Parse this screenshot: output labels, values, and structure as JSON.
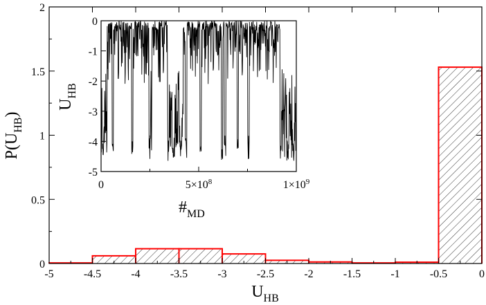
{
  "chart_data": [
    {
      "type": "bar",
      "subtype": "histogram",
      "xlabel": "U",
      "xlabel_sub": "HB",
      "ylabel_pre": "P(U",
      "ylabel_sub": "HB",
      "ylabel_post": ")",
      "xlim": [
        -5,
        0
      ],
      "ylim": [
        0,
        2
      ],
      "xticks": [
        -5,
        -4.5,
        -4,
        -3.5,
        -3,
        -2.5,
        -2,
        -1.5,
        -1,
        -0.5,
        0
      ],
      "xtick_labels": [
        "-5",
        "-4.5",
        "-4",
        "-3.5",
        "-3",
        "-2.5",
        "-2",
        "-1.5",
        "-1",
        "-0.5",
        "0"
      ],
      "yticks": [
        0,
        0.5,
        1,
        1.5,
        2
      ],
      "ytick_labels": [
        "0",
        "0.5",
        "1",
        "1.5",
        "2"
      ],
      "bins": [
        {
          "x0": -5.0,
          "x1": -4.5,
          "value": 0.005
        },
        {
          "x0": -4.5,
          "x1": -4.0,
          "value": 0.06
        },
        {
          "x0": -4.0,
          "x1": -3.5,
          "value": 0.115
        },
        {
          "x0": -3.5,
          "x1": -3.0,
          "value": 0.115
        },
        {
          "x0": -3.0,
          "x1": -2.5,
          "value": 0.075
        },
        {
          "x0": -2.5,
          "x1": -2.0,
          "value": 0.025
        },
        {
          "x0": -2.0,
          "x1": -1.5,
          "value": 0.012
        },
        {
          "x0": -1.5,
          "x1": -1.0,
          "value": 0.005
        },
        {
          "x0": -1.0,
          "x1": -0.5,
          "value": 0.01
        },
        {
          "x0": -0.5,
          "x1": 0.0,
          "value": 1.53
        }
      ],
      "bar_color": "#ff0000",
      "hatch_color": "#000000",
      "grid": false
    },
    {
      "type": "line",
      "role": "inset",
      "xlabel": "#",
      "xlabel_sub": "MD",
      "ylabel": "U",
      "ylabel_sub": "HB",
      "xlim": [
        0,
        1000000000
      ],
      "ylim": [
        -5,
        0
      ],
      "xticks": [
        0,
        500000000,
        1000000000
      ],
      "xtick_labels": [
        {
          "base": "0",
          "exp": ""
        },
        {
          "base": "5×10",
          "exp": "8"
        },
        {
          "base": "1×10",
          "exp": "9"
        }
      ],
      "yticks": [
        -5,
        -4,
        -3,
        -2,
        -1,
        0
      ],
      "ytick_labels": [
        "-5",
        "-4",
        "-3",
        "-2",
        "-1",
        "0"
      ],
      "line_color": "#000000",
      "deep_excursion_centers": [
        0.01,
        0.06,
        0.16,
        0.25,
        0.345,
        0.37,
        0.41,
        0.435,
        0.51,
        0.62,
        0.635,
        0.7,
        0.755,
        0.92,
        0.955,
        0.985
      ],
      "burst_intervals": [
        [
          0.0,
          0.03
        ],
        [
          0.245,
          0.26
        ],
        [
          0.35,
          0.42
        ],
        [
          0.92,
          1.0
        ]
      ],
      "grid": false
    }
  ]
}
